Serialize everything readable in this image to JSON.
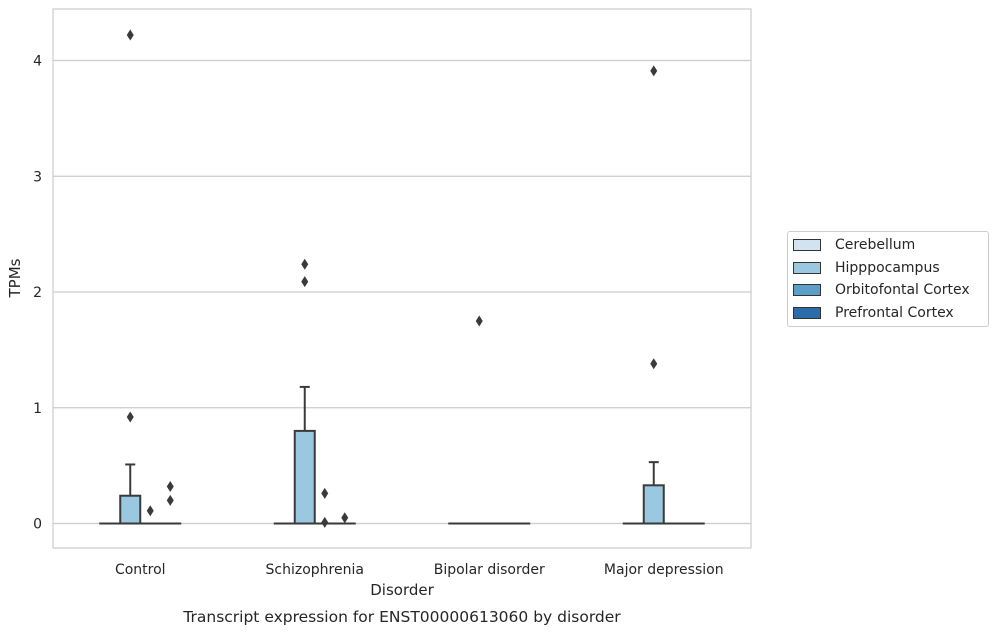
{
  "chart_data": {
    "type": "box",
    "title": "",
    "caption": "Transcript expression for ENST00000613060 by disorder",
    "xlabel": "Disorder",
    "ylabel": "TPMs",
    "ylim": [
      -0.2,
      4.45
    ],
    "yticks": [
      "0",
      "1",
      "2",
      "3",
      "4"
    ],
    "grid": "horizontal",
    "legend_placement": "right",
    "categories": [
      "Control",
      "Schizophrenia",
      "Bipolar disorder",
      "Major depression"
    ],
    "series": [
      {
        "name": "Cerebellum",
        "color": "#d2e3ef",
        "boxes": [
          {
            "min": 0,
            "q1": 0,
            "median": 0,
            "q3": 0,
            "max": 0,
            "outliers": []
          },
          {
            "min": 0,
            "q1": 0,
            "median": 0,
            "q3": 0,
            "max": 0,
            "outliers": []
          },
          {
            "min": 0,
            "q1": 0,
            "median": 0,
            "q3": 0,
            "max": 0,
            "outliers": []
          },
          {
            "min": 0,
            "q1": 0,
            "median": 0,
            "q3": 0,
            "max": 0,
            "outliers": []
          }
        ]
      },
      {
        "name": "Hipppocampus",
        "color": "#9ac8e0",
        "boxes": [
          {
            "min": 0,
            "q1": 0,
            "median": 0,
            "q3": 0.24,
            "max": 0.51,
            "outliers": [
              0.92,
              4.22
            ]
          },
          {
            "min": 0,
            "q1": 0,
            "median": 0,
            "q3": 0.8,
            "max": 1.18,
            "outliers": [
              2.09,
              2.24
            ]
          },
          {
            "min": 0,
            "q1": 0,
            "median": 0,
            "q3": 0,
            "max": 0,
            "outliers": [
              1.75
            ]
          },
          {
            "min": 0,
            "q1": 0,
            "median": 0,
            "q3": 0.33,
            "max": 0.53,
            "outliers": [
              1.38,
              3.91
            ]
          }
        ]
      },
      {
        "name": "Orbitofontal Cortex",
        "color": "#5a9ec9",
        "boxes": [
          {
            "min": 0,
            "q1": 0,
            "median": 0,
            "q3": 0,
            "max": 0,
            "outliers": [
              0.11
            ]
          },
          {
            "min": 0,
            "q1": 0,
            "median": 0,
            "q3": 0,
            "max": 0,
            "outliers": [
              0.01,
              0.26
            ]
          },
          {
            "min": 0,
            "q1": 0,
            "median": 0,
            "q3": 0,
            "max": 0,
            "outliers": []
          },
          {
            "min": 0,
            "q1": 0,
            "median": 0,
            "q3": 0,
            "max": 0,
            "outliers": []
          }
        ]
      },
      {
        "name": "Prefrontal Cortex",
        "color": "#2b6ca8",
        "boxes": [
          {
            "min": 0,
            "q1": 0,
            "median": 0,
            "q3": 0,
            "max": 0,
            "outliers": [
              0.2,
              0.32
            ]
          },
          {
            "min": 0,
            "q1": 0,
            "median": 0,
            "q3": 0,
            "max": 0,
            "outliers": [
              0.05
            ]
          },
          {
            "min": 0,
            "q1": 0,
            "median": 0,
            "q3": 0,
            "max": 0,
            "outliers": []
          },
          {
            "min": 0,
            "q1": 0,
            "median": 0,
            "q3": 0,
            "max": 0,
            "outliers": []
          }
        ]
      }
    ]
  }
}
